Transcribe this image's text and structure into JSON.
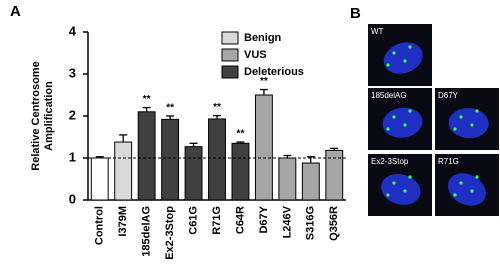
{
  "panel_labels": [
    "A",
    "B"
  ],
  "chart_data": {
    "type": "bar",
    "y_label": [
      "Relative Centrosome",
      "Amplification"
    ],
    "categories": [
      "Control",
      "I379M",
      "185delAG",
      "Ex2-3Stop",
      "C61G",
      "R71G",
      "C64R",
      "D67Y",
      "L246V",
      "S316G",
      "Q356R"
    ],
    "values": [
      1.0,
      1.38,
      2.1,
      1.92,
      1.27,
      1.93,
      1.35,
      2.5,
      1.0,
      0.88,
      1.18
    ],
    "errors": [
      0.03,
      0.17,
      0.1,
      0.08,
      0.08,
      0.08,
      0.03,
      0.13,
      0.06,
      0.15,
      0.05
    ],
    "colors": [
      "#ffffff",
      "#d9d9d9",
      "#404040",
      "#404040",
      "#404040",
      "#404040",
      "#404040",
      "#a6a6a6",
      "#a6a6a6",
      "#a6a6a6",
      "#a6a6a6"
    ],
    "significance": [
      null,
      null,
      "**",
      "**",
      null,
      "**",
      "**",
      "**",
      null,
      null,
      null
    ],
    "legend": [
      {
        "name": "Benign",
        "color": "#d9d9d9"
      },
      {
        "name": "VUS",
        "color": "#a6a6a6"
      },
      {
        "name": "Deleterious",
        "color": "#404040"
      }
    ],
    "reference_line": 1,
    "ylim": [
      0,
      4
    ],
    "yticks": [
      0,
      1,
      2,
      3,
      4
    ]
  },
  "images": [
    {
      "label": "WT"
    },
    {
      "label": "185delAG"
    },
    {
      "label": "D67Y"
    },
    {
      "label": "Ex2-3Stop"
    },
    {
      "label": "R71G"
    }
  ]
}
